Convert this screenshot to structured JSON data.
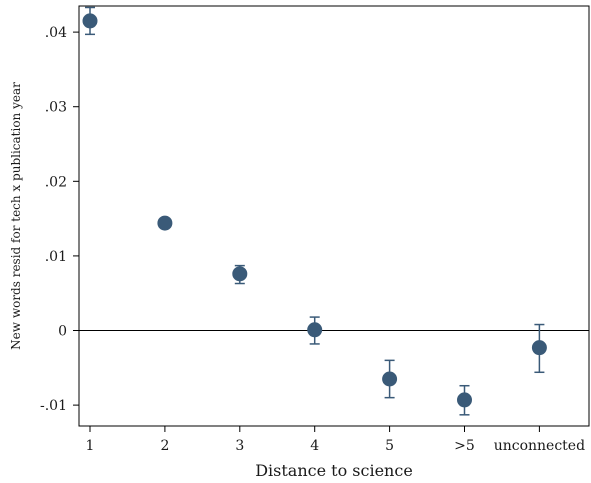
{
  "chart_data": {
    "type": "scatter",
    "title": "",
    "xlabel": "Distance to science",
    "ylabel": "New words resid for tech x publication year",
    "categories": [
      "1",
      "2",
      "3",
      "4",
      "5",
      ">5",
      "unconnected"
    ],
    "series": [
      {
        "values": [
          0.0415,
          0.0144,
          0.0076,
          0.0001,
          -0.0065,
          -0.0093,
          -0.0023
        ],
        "ci_low": [
          0.0397,
          0.0138,
          0.0063,
          -0.0018,
          -0.009,
          -0.0113,
          -0.0056
        ],
        "ci_high": [
          0.0433,
          0.015,
          0.0087,
          0.0018,
          -0.004,
          -0.0074,
          0.0008
        ]
      }
    ],
    "yticks": [
      -0.01,
      0,
      0.01,
      0.02,
      0.03,
      0.04
    ],
    "ytick_labels": [
      "-.01",
      "0",
      ".01",
      ".02",
      ".03",
      ".04"
    ],
    "ylim": [
      -0.0128,
      0.0435
    ],
    "reference_line_y": 0,
    "grid": false,
    "colors": {
      "marker": "#3a5a78",
      "errorbar": "#3a5a78",
      "axis": "#000000"
    }
  }
}
